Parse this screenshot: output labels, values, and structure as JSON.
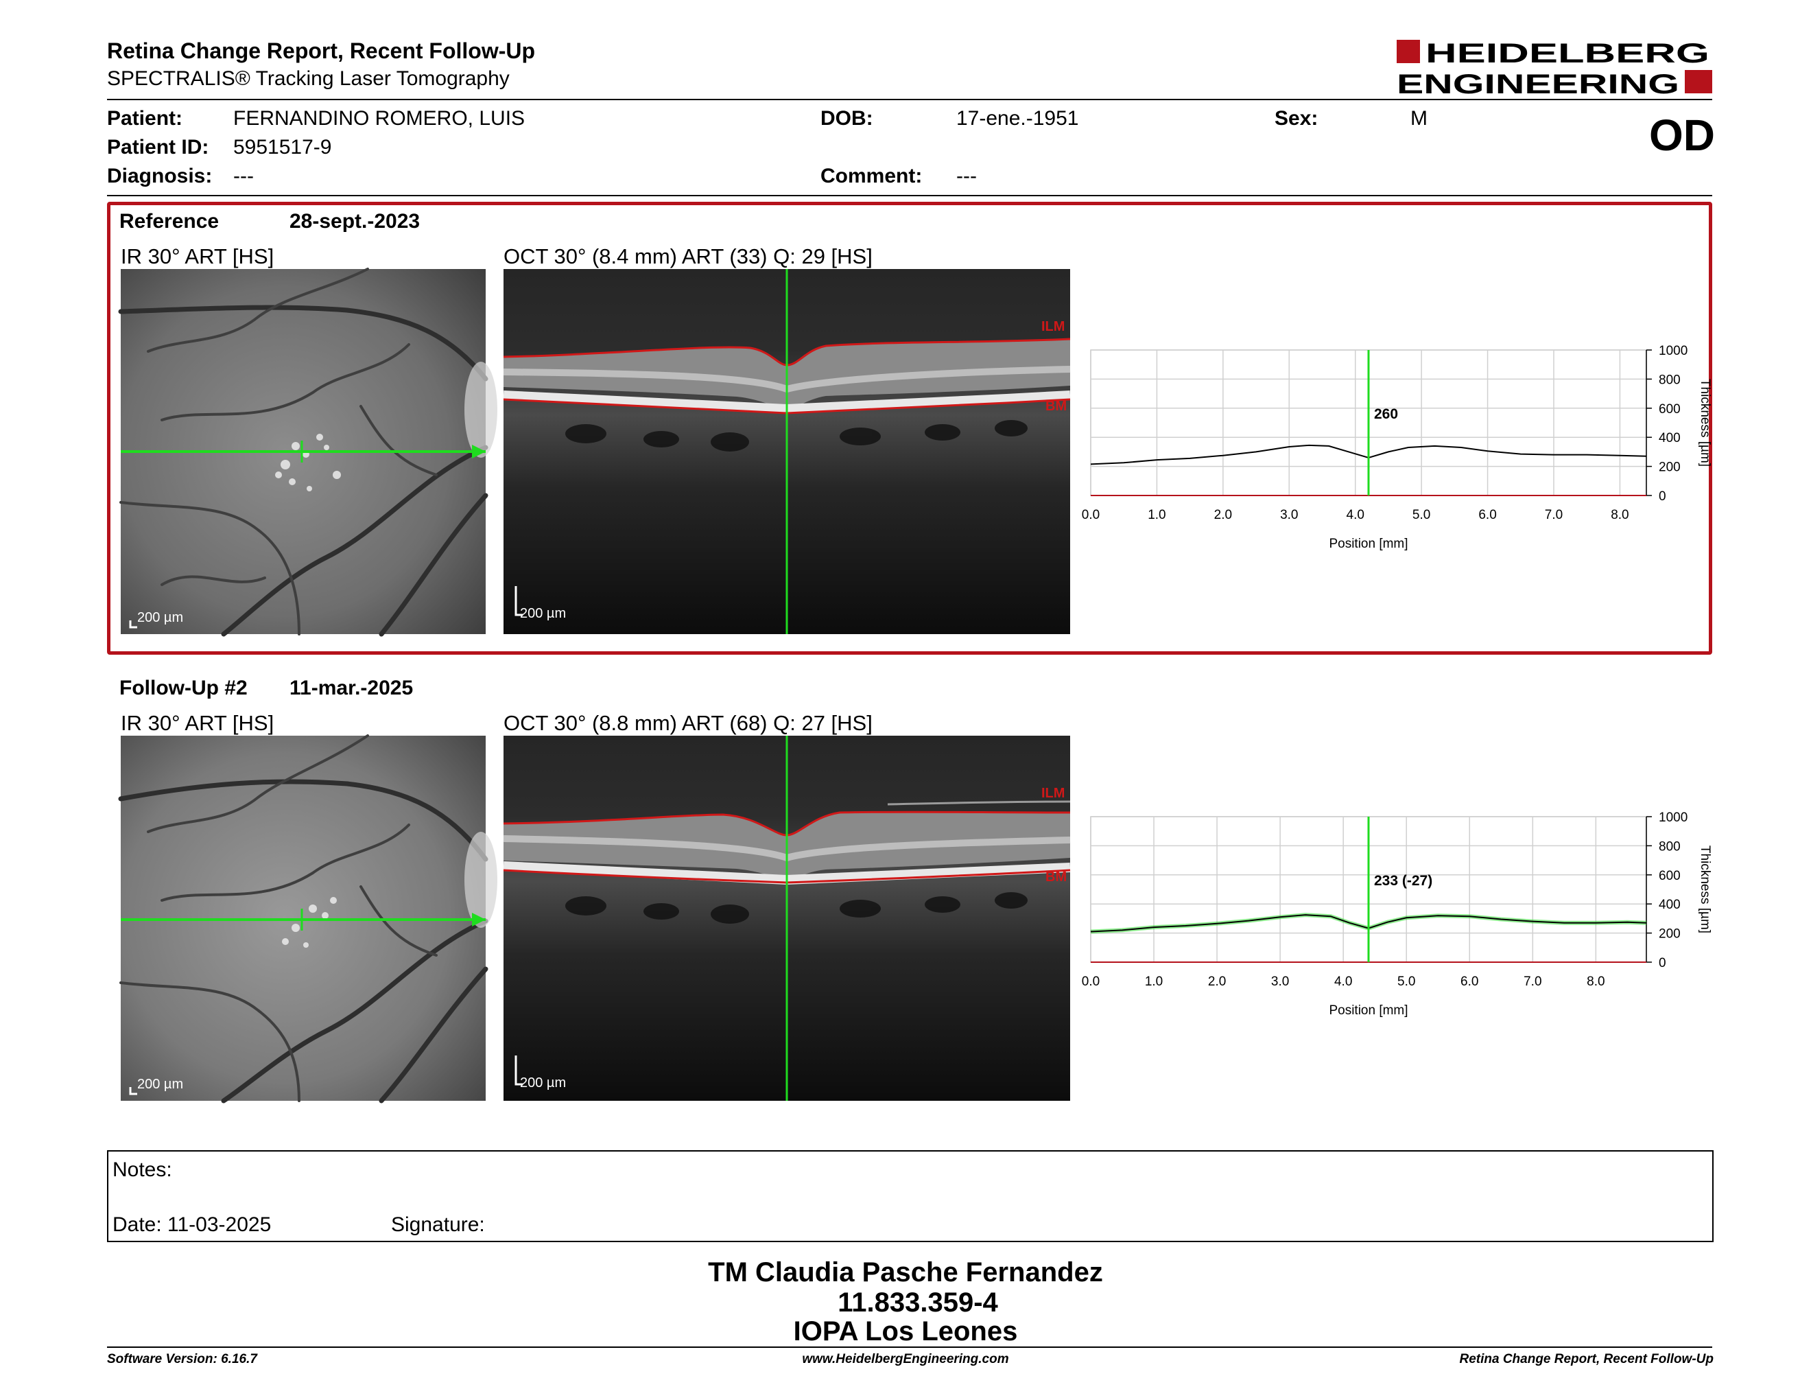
{
  "header": {
    "title": "Retina Change Report, Recent Follow-Up",
    "subtitle": "SPECTRALIS® Tracking Laser Tomography",
    "logo_line1": "HEIDELBERG",
    "logo_line2": "ENGINEERING",
    "eye": "OD"
  },
  "patient": {
    "name_label": "Patient:",
    "name": "FERNANDINO ROMERO, LUIS",
    "id_label": "Patient ID:",
    "id": "5951517-9",
    "diagnosis_label": "Diagnosis:",
    "diagnosis": "---",
    "dob_label": "DOB:",
    "dob": "17-ene.-1951",
    "comment_label": "Comment:",
    "comment": "---",
    "sex_label": "Sex:",
    "sex": "M"
  },
  "reference": {
    "label": "Reference",
    "date": "28-sept.-2023",
    "ir_caption": "IR 30° ART [HS]",
    "oct_caption": "OCT 30° (8.4 mm) ART (33) Q: 29 [HS]",
    "scale_bar": "200 µm",
    "ilm_label": "ILM",
    "bm_label": "BM"
  },
  "followup": {
    "label": "Follow-Up #2",
    "date": "11-mar.-2025",
    "ir_caption": "IR 30° ART [HS]",
    "oct_caption": "OCT 30° (8.8 mm) ART (68) Q: 27 [HS]",
    "scale_bar": "200 µm",
    "ilm_label": "ILM",
    "bm_label": "BM"
  },
  "chart_data": [
    {
      "type": "line",
      "xlabel": "Position [mm]",
      "ylabel": "Thickness [µm]",
      "xlim": [
        0,
        8.4
      ],
      "ylim": [
        0,
        1000
      ],
      "x_ticks": [
        "0.0",
        "1.0",
        "2.0",
        "3.0",
        "4.0",
        "5.0",
        "6.0",
        "7.0",
        "8.0"
      ],
      "y_ticks": [
        "0",
        "200",
        "400",
        "600",
        "800",
        "1000"
      ],
      "marker_x": 4.2,
      "marker_label": "260",
      "grid": true,
      "series": [
        {
          "x": [
            0,
            0.5,
            1.0,
            1.5,
            2.0,
            2.5,
            3.0,
            3.3,
            3.6,
            3.9,
            4.2,
            4.5,
            4.8,
            5.2,
            5.6,
            6.0,
            6.5,
            7.0,
            7.5,
            8.0,
            8.4
          ],
          "values": [
            215,
            225,
            245,
            255,
            275,
            300,
            335,
            345,
            340,
            300,
            260,
            300,
            330,
            340,
            330,
            305,
            285,
            280,
            280,
            275,
            270
          ]
        }
      ]
    },
    {
      "type": "line",
      "xlabel": "Position [mm]",
      "ylabel": "Thickness [µm]",
      "xlim": [
        0,
        8.8
      ],
      "ylim": [
        0,
        1000
      ],
      "x_ticks": [
        "0.0",
        "1.0",
        "2.0",
        "3.0",
        "4.0",
        "5.0",
        "6.0",
        "7.0",
        "8.0"
      ],
      "y_ticks": [
        "0",
        "200",
        "400",
        "600",
        "800",
        "1000"
      ],
      "marker_x": 4.4,
      "marker_label": "233 (-27)",
      "grid": true,
      "series": [
        {
          "x": [
            0,
            0.5,
            1.0,
            1.5,
            2.0,
            2.5,
            3.0,
            3.4,
            3.8,
            4.1,
            4.4,
            4.7,
            5.0,
            5.5,
            6.0,
            6.5,
            7.0,
            7.5,
            8.0,
            8.5,
            8.8
          ],
          "values": [
            210,
            220,
            240,
            250,
            265,
            285,
            310,
            325,
            315,
            270,
            233,
            275,
            305,
            320,
            315,
            295,
            280,
            270,
            270,
            275,
            270
          ]
        }
      ]
    }
  ],
  "notes": {
    "notes_label": "Notes:",
    "date_label": "Date: 11-03-2025",
    "signature_label": "Signature:"
  },
  "operator": {
    "name": "TM Claudia Pasche Fernandez",
    "id": "11.833.359-4",
    "clinic": "IOPA Los Leones"
  },
  "footer": {
    "software": "Software Version: 6.16.7",
    "website": "www.HeidelbergEngineering.com",
    "report": "Retina Change Report, Recent Follow-Up"
  },
  "colors": {
    "brand_red": "#b5121b",
    "marker_green": "#1fdc1f",
    "layer_red": "#d01818"
  }
}
